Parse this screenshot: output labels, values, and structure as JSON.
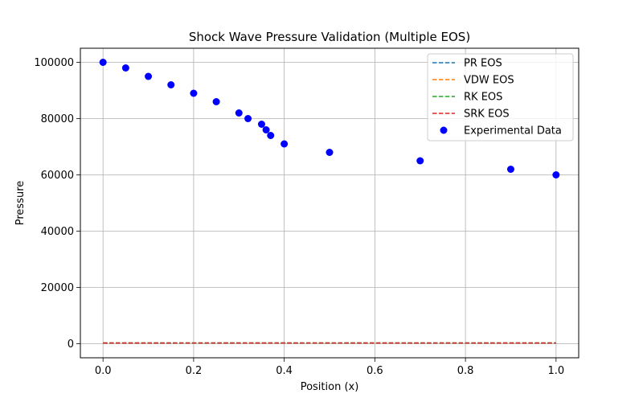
{
  "chart_data": {
    "type": "line",
    "title": "Shock Wave Pressure Validation (Multiple EOS)",
    "xlabel": "Position (x)",
    "ylabel": "Pressure",
    "xlim": [
      -0.05,
      1.05
    ],
    "ylim": [
      -5000,
      105000
    ],
    "xticks": [
      0.0,
      0.2,
      0.4,
      0.6,
      0.8,
      1.0
    ],
    "xtick_labels": [
      "0.0",
      "0.2",
      "0.4",
      "0.6",
      "0.8",
      "1.0"
    ],
    "yticks": [
      0,
      20000,
      40000,
      60000,
      80000,
      100000
    ],
    "ytick_labels": [
      "0",
      "20000",
      "40000",
      "60000",
      "80000",
      "100000"
    ],
    "grid": true,
    "legend_position": "top-right",
    "series": [
      {
        "name": "PR EOS",
        "style": "dashed-line",
        "color": "#1f77b4",
        "x": [
          0.0,
          1.0
        ],
        "y": [
          250,
          250
        ]
      },
      {
        "name": "VDW EOS",
        "style": "dashed-line",
        "color": "#ff7f0e",
        "x": [
          0.0,
          1.0
        ],
        "y": [
          250,
          250
        ]
      },
      {
        "name": "RK EOS",
        "style": "dashed-line",
        "color": "#2ca02c",
        "x": [
          0.0,
          1.0
        ],
        "y": [
          250,
          250
        ]
      },
      {
        "name": "SRK EOS",
        "style": "dashed-line",
        "color": "#d62728",
        "x": [
          0.0,
          1.0
        ],
        "y": [
          250,
          250
        ]
      },
      {
        "name": "Experimental Data",
        "style": "scatter",
        "color": "#0000ff",
        "x": [
          0.0,
          0.05,
          0.1,
          0.15,
          0.2,
          0.25,
          0.3,
          0.32,
          0.35,
          0.36,
          0.37,
          0.4,
          0.5,
          0.7,
          0.9,
          1.0
        ],
        "y": [
          100000,
          98000,
          95000,
          92000,
          89000,
          86000,
          82000,
          80000,
          78000,
          76000,
          74000,
          71000,
          68000,
          65000,
          62000,
          60000
        ]
      }
    ]
  }
}
